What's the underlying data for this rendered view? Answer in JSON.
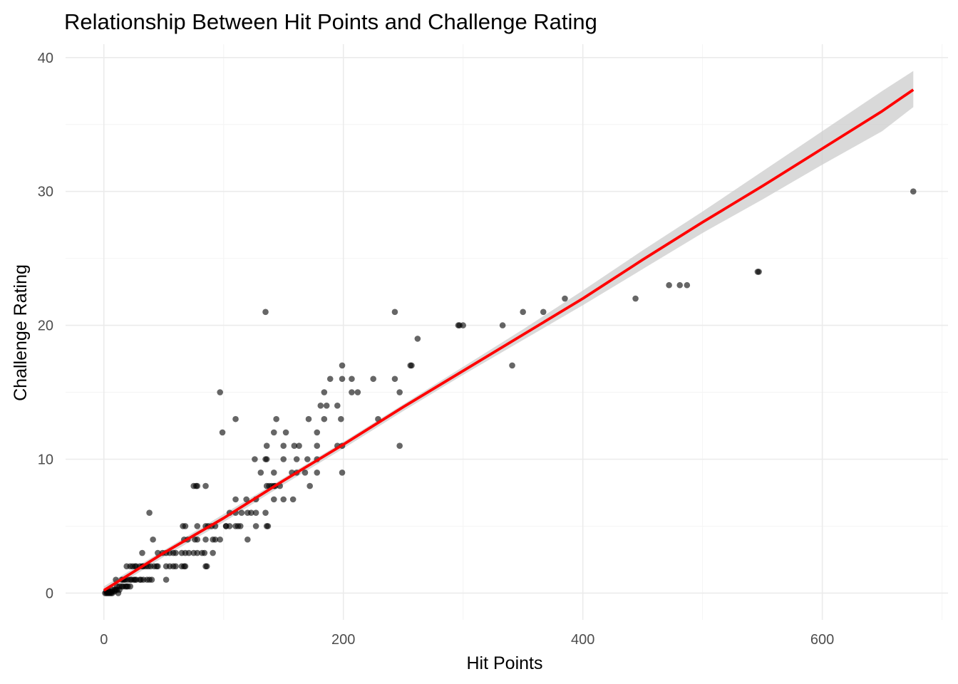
{
  "chart_data": {
    "type": "scatter",
    "title": "Relationship Between Hit Points and Challenge Rating",
    "xlabel": "Hit Points",
    "ylabel": "Challenge Rating",
    "xlim": [
      -32,
      705
    ],
    "ylim": [
      -2,
      41
    ],
    "x_ticks": [
      0,
      200,
      400,
      600
    ],
    "y_ticks": [
      0,
      10,
      20,
      30,
      40
    ],
    "x_tick_labels": [
      "0",
      "200",
      "400",
      "600"
    ],
    "y_tick_labels": [
      "0",
      "10",
      "20",
      "30",
      "40"
    ],
    "grid": true,
    "legend": "none",
    "point_color": "#000000",
    "point_opacity": 0.6,
    "fit_color": "#ff0000",
    "band_color": "#cccccc",
    "points": [
      [
        1,
        0
      ],
      [
        2,
        0
      ],
      [
        3,
        0
      ],
      [
        4,
        0
      ],
      [
        5,
        0
      ],
      [
        6,
        0
      ],
      [
        7,
        0
      ],
      [
        2,
        0.125
      ],
      [
        3,
        0.125
      ],
      [
        4,
        0.125
      ],
      [
        5,
        0.125
      ],
      [
        7,
        0.125
      ],
      [
        9,
        0.125
      ],
      [
        7,
        0.25
      ],
      [
        9,
        0.25
      ],
      [
        10,
        0.25
      ],
      [
        11,
        0.25
      ],
      [
        13,
        0.25
      ],
      [
        12,
        0
      ],
      [
        13,
        0.5
      ],
      [
        15,
        0.5
      ],
      [
        16,
        0.5
      ],
      [
        18,
        0.5
      ],
      [
        19,
        0.5
      ],
      [
        20,
        0.5
      ],
      [
        22,
        0.5
      ],
      [
        10,
        1
      ],
      [
        11,
        0.5
      ],
      [
        15,
        1
      ],
      [
        16,
        1
      ],
      [
        17,
        1
      ],
      [
        18,
        1
      ],
      [
        20,
        1
      ],
      [
        22,
        1
      ],
      [
        23,
        1
      ],
      [
        25,
        1
      ],
      [
        26,
        1
      ],
      [
        27,
        1
      ],
      [
        30,
        1
      ],
      [
        31,
        1
      ],
      [
        33,
        1
      ],
      [
        36,
        1
      ],
      [
        38,
        1
      ],
      [
        40,
        1
      ],
      [
        52,
        1
      ],
      [
        19,
        2
      ],
      [
        22,
        2
      ],
      [
        24,
        2
      ],
      [
        26,
        2
      ],
      [
        27,
        2
      ],
      [
        30,
        2
      ],
      [
        32,
        2
      ],
      [
        33,
        2
      ],
      [
        35,
        2
      ],
      [
        37,
        2
      ],
      [
        39,
        2
      ],
      [
        42,
        2
      ],
      [
        44,
        2
      ],
      [
        45,
        2
      ],
      [
        52,
        2
      ],
      [
        55,
        2
      ],
      [
        58,
        2
      ],
      [
        60,
        2
      ],
      [
        65,
        2
      ],
      [
        67,
        2
      ],
      [
        68,
        2
      ],
      [
        85,
        2
      ],
      [
        86,
        2
      ],
      [
        32,
        3
      ],
      [
        45,
        3
      ],
      [
        49,
        3
      ],
      [
        52,
        3
      ],
      [
        55,
        3
      ],
      [
        58,
        3
      ],
      [
        60,
        3
      ],
      [
        65,
        3
      ],
      [
        68,
        3
      ],
      [
        71,
        3
      ],
      [
        75,
        3
      ],
      [
        78,
        3
      ],
      [
        82,
        3
      ],
      [
        84,
        3
      ],
      [
        91,
        3
      ],
      [
        41,
        4
      ],
      [
        67,
        4
      ],
      [
        70,
        4
      ],
      [
        76,
        4
      ],
      [
        78,
        4
      ],
      [
        85,
        4
      ],
      [
        91,
        4
      ],
      [
        93,
        4
      ],
      [
        97,
        4
      ],
      [
        120,
        4
      ],
      [
        38,
        6
      ],
      [
        66,
        5
      ],
      [
        68,
        5
      ],
      [
        78,
        5
      ],
      [
        85,
        5
      ],
      [
        87,
        5
      ],
      [
        90,
        5
      ],
      [
        93,
        5
      ],
      [
        102,
        5
      ],
      [
        105,
        5
      ],
      [
        110,
        5
      ],
      [
        112,
        5
      ],
      [
        114,
        5
      ],
      [
        127,
        5
      ],
      [
        136,
        5
      ],
      [
        137,
        5
      ],
      [
        105,
        6
      ],
      [
        110,
        6
      ],
      [
        115,
        6
      ],
      [
        120,
        6
      ],
      [
        123,
        6
      ],
      [
        127,
        6
      ],
      [
        135,
        6
      ],
      [
        110,
        7
      ],
      [
        119,
        7
      ],
      [
        127,
        7
      ],
      [
        142,
        7
      ],
      [
        150,
        7
      ],
      [
        158,
        7
      ],
      [
        75,
        8
      ],
      [
        77,
        8
      ],
      [
        78,
        8
      ],
      [
        85,
        8
      ],
      [
        136,
        8
      ],
      [
        138,
        8
      ],
      [
        140,
        8
      ],
      [
        142,
        8
      ],
      [
        143,
        8
      ],
      [
        147,
        8
      ],
      [
        172,
        8
      ],
      [
        102,
        5
      ],
      [
        131,
        9
      ],
      [
        142,
        9
      ],
      [
        157,
        9
      ],
      [
        161,
        9
      ],
      [
        168,
        9
      ],
      [
        178,
        9
      ],
      [
        199,
        9
      ],
      [
        126,
        10
      ],
      [
        135,
        10
      ],
      [
        136,
        10
      ],
      [
        150,
        10
      ],
      [
        161,
        10
      ],
      [
        170,
        10
      ],
      [
        178,
        10
      ],
      [
        136,
        11
      ],
      [
        150,
        11
      ],
      [
        159,
        11
      ],
      [
        163,
        11
      ],
      [
        178,
        11
      ],
      [
        195,
        11
      ],
      [
        199,
        11
      ],
      [
        247,
        11
      ],
      [
        99,
        12
      ],
      [
        142,
        12
      ],
      [
        152,
        12
      ],
      [
        178,
        12
      ],
      [
        110,
        13
      ],
      [
        144,
        13
      ],
      [
        171,
        13
      ],
      [
        184,
        13
      ],
      [
        198,
        13
      ],
      [
        229,
        13
      ],
      [
        181,
        14
      ],
      [
        186,
        14
      ],
      [
        195,
        14
      ],
      [
        97,
        15
      ],
      [
        184,
        15
      ],
      [
        207,
        15
      ],
      [
        212,
        15
      ],
      [
        247,
        15
      ],
      [
        189,
        16
      ],
      [
        199,
        16
      ],
      [
        207,
        16
      ],
      [
        225,
        16
      ],
      [
        243,
        16
      ],
      [
        199,
        17
      ],
      [
        256,
        17
      ],
      [
        257,
        17
      ],
      [
        341,
        17
      ],
      [
        262,
        19
      ],
      [
        296,
        20
      ],
      [
        297,
        20
      ],
      [
        300,
        20
      ],
      [
        333,
        20
      ],
      [
        135,
        21
      ],
      [
        243,
        21
      ],
      [
        350,
        21
      ],
      [
        367,
        21
      ],
      [
        385,
        22
      ],
      [
        444,
        22
      ],
      [
        472,
        23
      ],
      [
        481,
        23
      ],
      [
        487,
        23
      ],
      [
        546,
        24
      ],
      [
        547,
        24
      ],
      [
        676,
        30
      ]
    ],
    "fit_line": [
      [
        0,
        0.2
      ],
      [
        50,
        3.0
      ],
      [
        100,
        5.6
      ],
      [
        150,
        8.4
      ],
      [
        200,
        11.1
      ],
      [
        250,
        13.9
      ],
      [
        300,
        16.6
      ],
      [
        350,
        19.3
      ],
      [
        400,
        22.0
      ],
      [
        450,
        24.9
      ],
      [
        500,
        27.7
      ],
      [
        550,
        30.4
      ],
      [
        600,
        33.2
      ],
      [
        650,
        36.0
      ],
      [
        676,
        37.6
      ]
    ],
    "band_upper": [
      [
        0,
        0.5
      ],
      [
        50,
        3.2
      ],
      [
        100,
        5.9
      ],
      [
        150,
        8.6
      ],
      [
        200,
        11.3
      ],
      [
        250,
        14.1
      ],
      [
        300,
        16.9
      ],
      [
        350,
        19.7
      ],
      [
        400,
        22.6
      ],
      [
        450,
        25.6
      ],
      [
        500,
        28.5
      ],
      [
        550,
        31.5
      ],
      [
        600,
        34.5
      ],
      [
        650,
        37.5
      ],
      [
        676,
        39.0
      ]
    ],
    "band_lower": [
      [
        0,
        -0.1
      ],
      [
        50,
        2.7
      ],
      [
        100,
        5.3
      ],
      [
        150,
        8.1
      ],
      [
        200,
        10.8
      ],
      [
        250,
        13.6
      ],
      [
        300,
        16.3
      ],
      [
        350,
        18.9
      ],
      [
        400,
        21.5
      ],
      [
        450,
        24.2
      ],
      [
        500,
        26.9
      ],
      [
        550,
        29.4
      ],
      [
        600,
        32.0
      ],
      [
        650,
        34.5
      ],
      [
        676,
        36.3
      ]
    ]
  }
}
